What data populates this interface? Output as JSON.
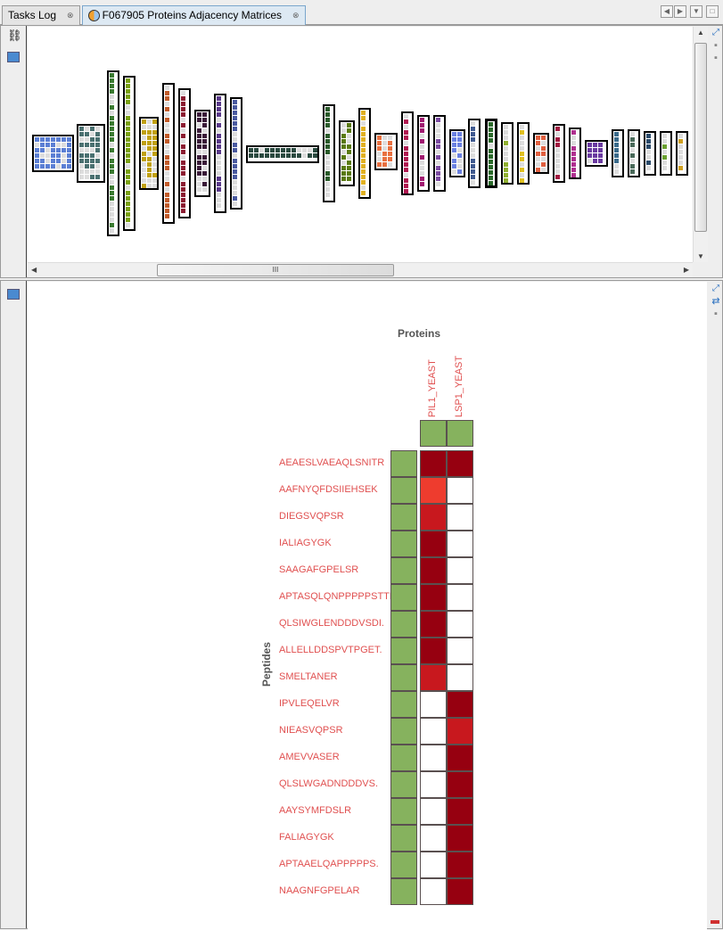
{
  "tabs": [
    {
      "label": "Tasks Log"
    },
    {
      "label": "F067905 Proteins Adjacency Matrices"
    }
  ],
  "tab_close_glyph": "⊗",
  "overview": {
    "thumbnail_colors": [
      "#5b7fd4",
      "#4a7070",
      "#3a7a30",
      "#7aa010",
      "#c0a010",
      "#c05a28",
      "#8a1a30",
      "#3a1a38",
      "#5a3a8a",
      "#4a5aa0",
      "#2a4a40",
      "#2a5a2a",
      "#5a7a10",
      "#e0b020",
      "#e87040",
      "#b01850",
      "#a01870",
      "#7a4aa0",
      "#6a80e0",
      "#405a90",
      "#2a6a2a",
      "#90b030",
      "#e0c020",
      "#e06040",
      "#a01840",
      "#b03090",
      "#6a3aa0",
      "#3a6a8a",
      "#4a6a5a",
      "#2a4a6a",
      "#6aa030",
      "#d0a020"
    ],
    "scroll_grip": "III"
  },
  "matrix": {
    "x_title": "Proteins",
    "y_title": "Peptides",
    "proteins": [
      "PIL1_YEAST",
      "LSP1_YEAST"
    ],
    "colors": {
      "header": "#86b25e",
      "level0": "#ffffff",
      "level1": "#ee3c2e",
      "level2": "#c8181e",
      "level3": "#960010",
      "grid": "#5a5050"
    },
    "rows": [
      {
        "peptide": "AEAESLVAEAQLSNITR",
        "values": [
          3,
          3
        ]
      },
      {
        "peptide": "AAFNYQFDSIIEHSEK",
        "values": [
          1,
          0
        ]
      },
      {
        "peptide": "DIEGSVQPSR",
        "values": [
          2,
          0
        ]
      },
      {
        "peptide": "IALIAGYGK",
        "values": [
          3,
          0
        ]
      },
      {
        "peptide": "SAAGAFGPELSR",
        "values": [
          3,
          0
        ]
      },
      {
        "peptide": "APTASQLQNPPPPPSTTK",
        "values": [
          3,
          0
        ]
      },
      {
        "peptide": "QLSIWGLENDDDVSDI.",
        "values": [
          3,
          0
        ]
      },
      {
        "peptide": "ALLELLDDSPVTPGET.",
        "values": [
          3,
          0
        ]
      },
      {
        "peptide": "SMELTANER",
        "values": [
          2,
          0
        ]
      },
      {
        "peptide": "IPVLEQELVR",
        "values": [
          0,
          3
        ]
      },
      {
        "peptide": "NIEASVQPSR",
        "values": [
          0,
          2
        ]
      },
      {
        "peptide": "AMEVVASER",
        "values": [
          0,
          3
        ]
      },
      {
        "peptide": "QLSLWGADNDDDVS.",
        "values": [
          0,
          3
        ]
      },
      {
        "peptide": "AAYSYMFDSLR",
        "values": [
          0,
          3
        ]
      },
      {
        "peptide": "FALIAGYGK",
        "values": [
          0,
          3
        ]
      },
      {
        "peptide": "APTAAELQAPPPPPS.",
        "values": [
          0,
          3
        ]
      },
      {
        "peptide": "NAAGNFGPELAR",
        "values": [
          0,
          3
        ]
      }
    ]
  }
}
